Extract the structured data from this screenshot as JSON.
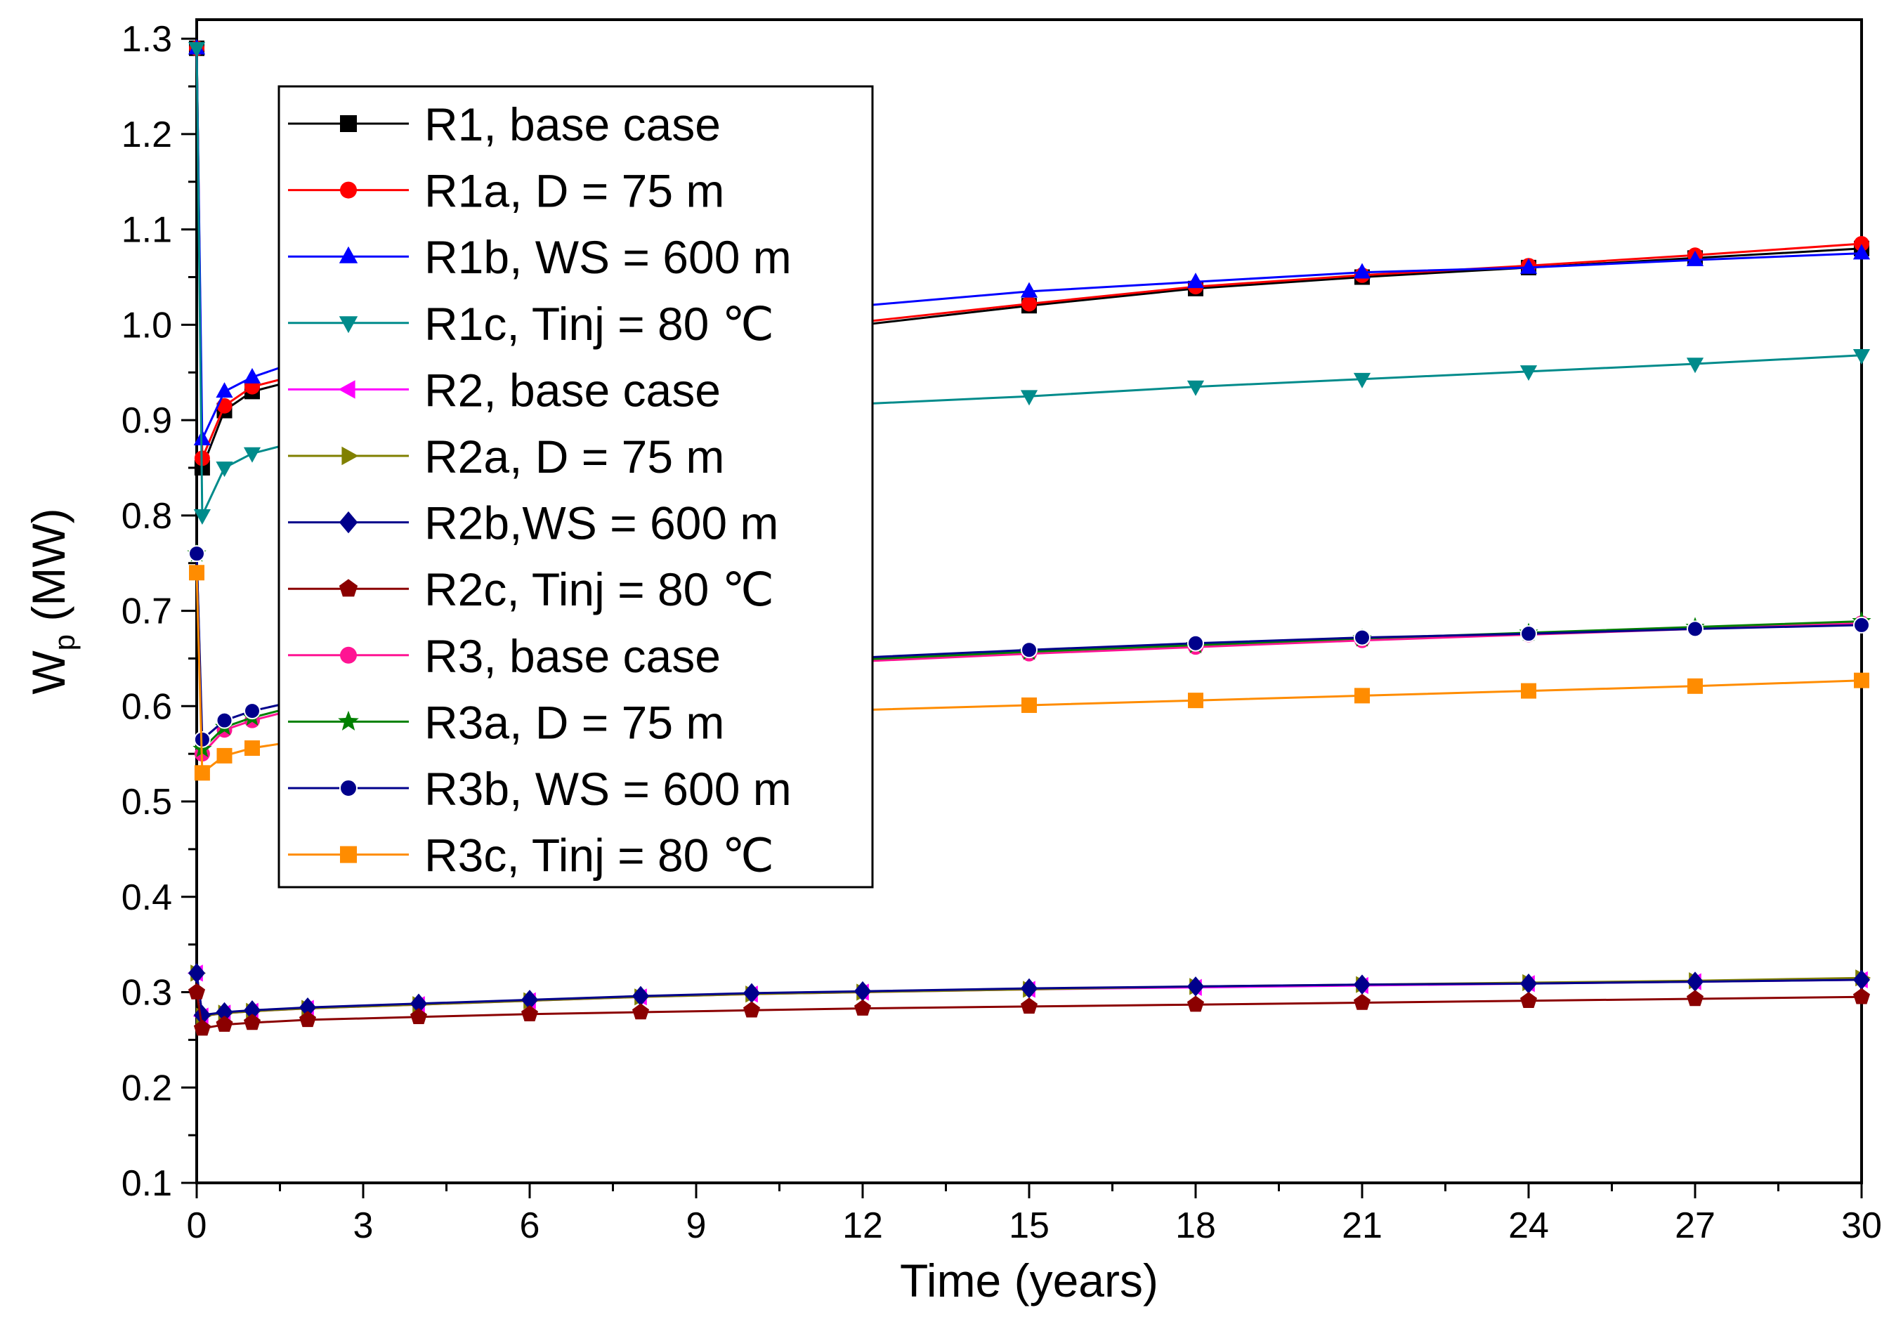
{
  "chart_data": {
    "type": "line",
    "xlabel": "Time (years)",
    "ylabel_main": "W",
    "ylabel_sub": "p",
    "ylabel_unit": " (MW)",
    "xlim": [
      0,
      30
    ],
    "ylim": [
      0.1,
      1.32
    ],
    "x_ticks": [
      0,
      3,
      6,
      9,
      12,
      15,
      18,
      21,
      24,
      27,
      30
    ],
    "x_tick_labels": [
      "0",
      "3",
      "6",
      "9",
      "12",
      "15",
      "18",
      "21",
      "24",
      "27",
      "30"
    ],
    "y_ticks": [
      0.1,
      0.2,
      0.3,
      0.4,
      0.5,
      0.6,
      0.7,
      0.8,
      0.9,
      1.0,
      1.1,
      1.2,
      1.3
    ],
    "y_tick_labels": [
      "0.1",
      "0.2",
      "0.3",
      "0.4",
      "0.5",
      "0.6",
      "0.7",
      "0.8",
      "0.9",
      "1.0",
      "1.1",
      "1.2",
      "1.3"
    ],
    "grid": false,
    "legend_position": "top-left",
    "series": [
      {
        "name": "R1, base case",
        "color": "#000000",
        "marker": "square",
        "x": [
          0,
          0.1,
          0.5,
          1,
          2,
          4,
          6,
          8,
          10,
          12,
          15,
          18,
          21,
          24,
          27,
          30
        ],
        "y": [
          1.29,
          0.85,
          0.91,
          0.93,
          0.945,
          0.96,
          0.97,
          0.98,
          0.99,
          1.0,
          1.02,
          1.038,
          1.05,
          1.06,
          1.07,
          1.08
        ]
      },
      {
        "name": "R1a, D = 75 m",
        "color": "#ff0000",
        "marker": "circle",
        "x": [
          0,
          0.1,
          0.5,
          1,
          2,
          4,
          6,
          8,
          10,
          12,
          15,
          18,
          21,
          24,
          27,
          30
        ],
        "y": [
          1.29,
          0.86,
          0.915,
          0.935,
          0.95,
          0.963,
          0.973,
          0.983,
          0.993,
          1.003,
          1.022,
          1.04,
          1.052,
          1.062,
          1.073,
          1.085
        ]
      },
      {
        "name": "R1b, WS  = 600 m",
        "color": "#0000ff",
        "marker": "triangle-up",
        "x": [
          0,
          0.1,
          0.5,
          1,
          2,
          4,
          6,
          8,
          10,
          12,
          15,
          18,
          21,
          24,
          27,
          30
        ],
        "y": [
          1.29,
          0.88,
          0.93,
          0.945,
          0.965,
          0.98,
          0.99,
          1.0,
          1.01,
          1.02,
          1.035,
          1.045,
          1.055,
          1.06,
          1.068,
          1.075
        ]
      },
      {
        "name": "R1c, Tinj = 80 ℃",
        "color": "#008b8b",
        "marker": "triangle-down",
        "x": [
          0,
          0.1,
          0.5,
          1,
          2,
          4,
          6,
          8,
          10,
          12,
          15,
          18,
          21,
          24,
          27,
          30
        ],
        "y": [
          1.29,
          0.8,
          0.85,
          0.865,
          0.88,
          0.892,
          0.9,
          0.906,
          0.912,
          0.917,
          0.925,
          0.935,
          0.943,
          0.951,
          0.959,
          0.968
        ]
      },
      {
        "name": "R2, base case",
        "color": "#ff00ff",
        "marker": "triangle-left",
        "x": [
          0,
          0.1,
          0.5,
          1,
          2,
          4,
          6,
          8,
          10,
          12,
          15,
          18,
          21,
          24,
          27,
          30
        ],
        "y": [
          0.32,
          0.275,
          0.278,
          0.28,
          0.283,
          0.287,
          0.291,
          0.295,
          0.298,
          0.3,
          0.303,
          0.305,
          0.307,
          0.309,
          0.311,
          0.313
        ]
      },
      {
        "name": "R2a, D = 75 m",
        "color": "#808000",
        "marker": "triangle-right",
        "x": [
          0,
          0.1,
          0.5,
          1,
          2,
          4,
          6,
          8,
          10,
          12,
          15,
          18,
          21,
          24,
          27,
          30
        ],
        "y": [
          0.32,
          0.275,
          0.278,
          0.28,
          0.283,
          0.287,
          0.291,
          0.295,
          0.298,
          0.3,
          0.303,
          0.306,
          0.308,
          0.31,
          0.312,
          0.315
        ]
      },
      {
        "name": "R2b,WS = 600 m",
        "color": "#00008b",
        "marker": "diamond",
        "x": [
          0,
          0.1,
          0.5,
          1,
          2,
          4,
          6,
          8,
          10,
          12,
          15,
          18,
          21,
          24,
          27,
          30
        ],
        "y": [
          0.32,
          0.276,
          0.279,
          0.281,
          0.284,
          0.288,
          0.292,
          0.296,
          0.299,
          0.301,
          0.304,
          0.306,
          0.308,
          0.309,
          0.311,
          0.313
        ]
      },
      {
        "name": "R2c, Tinj = 80 ℃",
        "color": "#8b0000",
        "marker": "pentagon",
        "x": [
          0,
          0.1,
          0.5,
          1,
          2,
          4,
          6,
          8,
          10,
          12,
          15,
          18,
          21,
          24,
          27,
          30
        ],
        "y": [
          0.3,
          0.262,
          0.266,
          0.268,
          0.271,
          0.274,
          0.277,
          0.279,
          0.281,
          0.283,
          0.285,
          0.287,
          0.289,
          0.291,
          0.293,
          0.295
        ]
      },
      {
        "name": "R3, base case",
        "color": "#ff1493",
        "marker": "circle",
        "x": [
          0,
          0.1,
          0.5,
          1,
          2,
          4,
          6,
          8,
          10,
          12,
          15,
          18,
          21,
          24,
          27,
          30
        ],
        "y": [
          0.76,
          0.55,
          0.575,
          0.585,
          0.6,
          0.615,
          0.627,
          0.635,
          0.641,
          0.647,
          0.655,
          0.662,
          0.669,
          0.675,
          0.681,
          0.687
        ]
      },
      {
        "name": "R3a, D = 75 m",
        "color": "#008000",
        "marker": "star",
        "x": [
          0,
          0.1,
          0.5,
          1,
          2,
          4,
          6,
          8,
          10,
          12,
          15,
          18,
          21,
          24,
          27,
          30
        ],
        "y": [
          0.76,
          0.555,
          0.578,
          0.588,
          0.603,
          0.618,
          0.629,
          0.637,
          0.643,
          0.649,
          0.657,
          0.664,
          0.671,
          0.677,
          0.683,
          0.689
        ]
      },
      {
        "name": "R3b, WS = 600 m",
        "color": "#00008b",
        "marker": "circle-half",
        "x": [
          0,
          0.1,
          0.5,
          1,
          2,
          4,
          6,
          8,
          10,
          12,
          15,
          18,
          21,
          24,
          27,
          30
        ],
        "y": [
          0.76,
          0.565,
          0.585,
          0.595,
          0.608,
          0.622,
          0.632,
          0.639,
          0.645,
          0.651,
          0.659,
          0.666,
          0.672,
          0.676,
          0.681,
          0.685
        ]
      },
      {
        "name": "R3c, Tinj = 80 ℃",
        "color": "#ff8c00",
        "marker": "square",
        "x": [
          0,
          0.1,
          0.5,
          1,
          2,
          4,
          6,
          8,
          10,
          12,
          15,
          18,
          21,
          24,
          27,
          30
        ],
        "y": [
          0.74,
          0.53,
          0.548,
          0.556,
          0.565,
          0.575,
          0.582,
          0.588,
          0.592,
          0.596,
          0.601,
          0.606,
          0.611,
          0.616,
          0.621,
          0.627
        ]
      }
    ]
  }
}
